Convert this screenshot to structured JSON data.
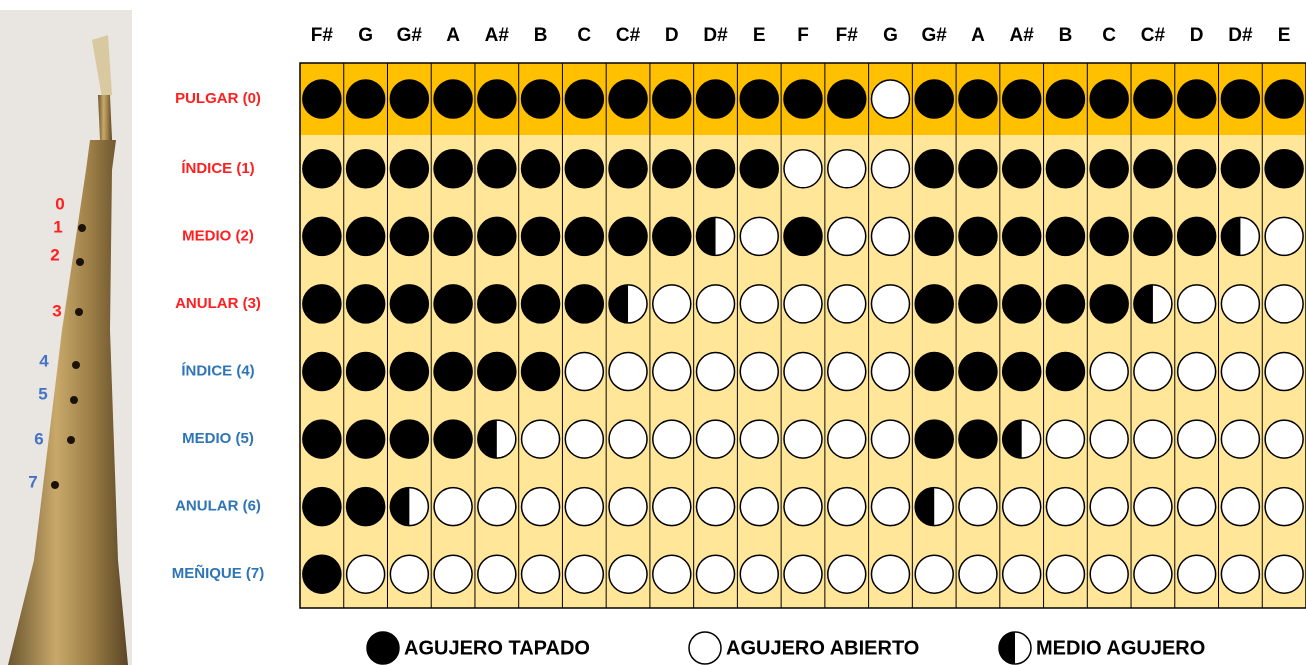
{
  "instrument": {
    "hole_labels": [
      "0",
      "1",
      "2",
      "3",
      "4",
      "5",
      "6",
      "7"
    ]
  },
  "table": {
    "notes": [
      "F#",
      "G",
      "G#",
      "A",
      "A#",
      "B",
      "C",
      "C#",
      "D",
      "D#",
      "E",
      "F",
      "F#",
      "G",
      "G#",
      "A",
      "A#",
      "B",
      "C",
      "C#",
      "D",
      "D#",
      "E"
    ],
    "rows": [
      {
        "label": "PULGAR (0)",
        "cells": [
          "C",
          "C",
          "C",
          "C",
          "C",
          "C",
          "C",
          "C",
          "C",
          "C",
          "C",
          "C",
          "C",
          "O",
          "C",
          "C",
          "C",
          "C",
          "C",
          "C",
          "C",
          "C",
          "C"
        ]
      },
      {
        "label": "ÍNDICE (1)",
        "cells": [
          "C",
          "C",
          "C",
          "C",
          "C",
          "C",
          "C",
          "C",
          "C",
          "C",
          "C",
          "O",
          "O",
          "O",
          "C",
          "C",
          "C",
          "C",
          "C",
          "C",
          "C",
          "C",
          "C"
        ]
      },
      {
        "label": "MEDIO (2)",
        "cells": [
          "C",
          "C",
          "C",
          "C",
          "C",
          "C",
          "C",
          "C",
          "C",
          "H",
          "O",
          "C",
          "O",
          "O",
          "C",
          "C",
          "C",
          "C",
          "C",
          "C",
          "C",
          "H",
          "O"
        ]
      },
      {
        "label": "ANULAR (3)",
        "cells": [
          "C",
          "C",
          "C",
          "C",
          "C",
          "C",
          "C",
          "H",
          "O",
          "O",
          "O",
          "O",
          "O",
          "O",
          "C",
          "C",
          "C",
          "C",
          "C",
          "H",
          "O",
          "O",
          "O"
        ]
      },
      {
        "label": "ÍNDICE (4)",
        "cells": [
          "C",
          "C",
          "C",
          "C",
          "C",
          "C",
          "O",
          "O",
          "O",
          "O",
          "O",
          "O",
          "O",
          "O",
          "C",
          "C",
          "C",
          "C",
          "O",
          "O",
          "O",
          "O",
          "O"
        ]
      },
      {
        "label": "MEDIO (5)",
        "cells": [
          "C",
          "C",
          "C",
          "C",
          "H",
          "O",
          "O",
          "O",
          "O",
          "O",
          "O",
          "O",
          "O",
          "O",
          "C",
          "C",
          "H",
          "O",
          "O",
          "O",
          "O",
          "O",
          "O"
        ]
      },
      {
        "label": "ANULAR (6)",
        "cells": [
          "C",
          "C",
          "H",
          "O",
          "O",
          "O",
          "O",
          "O",
          "O",
          "O",
          "O",
          "O",
          "O",
          "O",
          "H",
          "O",
          "O",
          "O",
          "O",
          "O",
          "O",
          "O",
          "O"
        ]
      },
      {
        "label": "MEÑIQUE (7)",
        "cells": [
          "C",
          "O",
          "O",
          "O",
          "O",
          "O",
          "O",
          "O",
          "O",
          "O",
          "O",
          "O",
          "O",
          "O",
          "O",
          "O",
          "O",
          "O",
          "O",
          "O",
          "O",
          "O",
          "O"
        ]
      }
    ]
  },
  "legend": {
    "closed": "AGUJERO TAPADO",
    "open": "AGUJERO ABIERTO",
    "half": "MEDIO AGUJERO"
  }
}
